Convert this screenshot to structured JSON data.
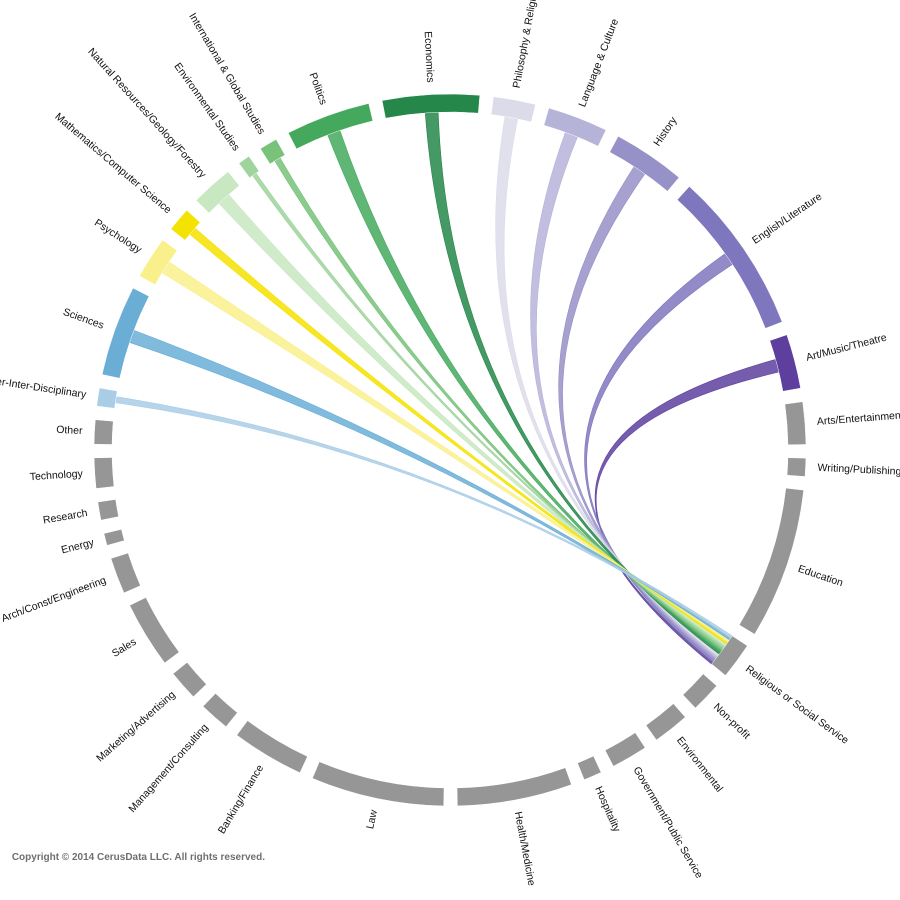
{
  "copyright": "Copyright © 2014 CerusData LLC.  All rights reserved.",
  "chart_data": {
    "type": "chord",
    "title": "",
    "source_segment": "Religious or Social Service",
    "segments": [
      {
        "label": "Art/Music/Theatre",
        "color": "#5e3f9e"
      },
      {
        "label": "English/Literature",
        "color": "#7f77bd"
      },
      {
        "label": "History",
        "color": "#9691c7"
      },
      {
        "label": "Language & Culture",
        "color": "#b6b3d9"
      },
      {
        "label": "Philosophy & Religion",
        "color": "#dcdbea"
      },
      {
        "label": "Economics",
        "color": "#25874a"
      },
      {
        "label": "Politics",
        "color": "#44a95d"
      },
      {
        "label": "International & Global Studies",
        "color": "#78c27a"
      },
      {
        "label": "Environmental Studies",
        "color": "#9fd49c"
      },
      {
        "label": "Natural Resources/Geology/Forestry",
        "color": "#c7e8c0"
      },
      {
        "label": "Mathematics/Computer Science",
        "color": "#f4e200"
      },
      {
        "label": "Psychology",
        "color": "#f9f08c"
      },
      {
        "label": "Sciences",
        "color": "#6aaed6"
      },
      {
        "label": "Other-Inter-Disciplinary",
        "color": "#a9cde6"
      },
      {
        "label": "Other",
        "color": "#969696"
      },
      {
        "label": "Technology",
        "color": "#969696"
      },
      {
        "label": "Research",
        "color": "#969696"
      },
      {
        "label": "Energy",
        "color": "#969696"
      },
      {
        "label": "Arch/Const/Engineering",
        "color": "#969696"
      },
      {
        "label": "Sales",
        "color": "#969696"
      },
      {
        "label": "Marketing/Advertising",
        "color": "#969696"
      },
      {
        "label": "Management/Consulting",
        "color": "#969696"
      },
      {
        "label": "Banking/Finance",
        "color": "#969696"
      },
      {
        "label": "Law",
        "color": "#969696"
      },
      {
        "label": "Health/Medicine",
        "color": "#969696"
      },
      {
        "label": "Hospitality",
        "color": "#969696"
      },
      {
        "label": "Government/Public Service",
        "color": "#969696"
      },
      {
        "label": "Environmental",
        "color": "#969696"
      },
      {
        "label": "Non-profit",
        "color": "#969696"
      },
      {
        "label": "Religious or Social Service",
        "color": "#969696"
      },
      {
        "label": "Education",
        "color": "#969696"
      },
      {
        "label": "Writing/Publishing",
        "color": "#969696"
      },
      {
        "label": "Arts/Entertainment",
        "color": "#969696"
      }
    ],
    "chords": [
      {
        "to": "Art/Music/Theatre",
        "color": "#5e3f9e"
      },
      {
        "to": "English/Literature",
        "color": "#7f77bd"
      },
      {
        "to": "History",
        "color": "#9691c7"
      },
      {
        "to": "Language & Culture",
        "color": "#b6b3d9"
      },
      {
        "to": "Philosophy & Religion",
        "color": "#dcdbea"
      },
      {
        "to": "Economics",
        "color": "#25874a"
      },
      {
        "to": "Politics",
        "color": "#44a95d"
      },
      {
        "to": "International & Global Studies",
        "color": "#78c27a"
      },
      {
        "to": "Environmental Studies",
        "color": "#9fd49c"
      },
      {
        "to": "Natural Resources/Geology/Forestry",
        "color": "#c7e8c0"
      },
      {
        "to": "Mathematics/Computer Science",
        "color": "#f4e200"
      },
      {
        "to": "Psychology",
        "color": "#f9f08c"
      },
      {
        "to": "Sciences",
        "color": "#6aaed6"
      },
      {
        "to": "Other-Inter-Disciplinary",
        "color": "#a9cde6"
      }
    ]
  }
}
